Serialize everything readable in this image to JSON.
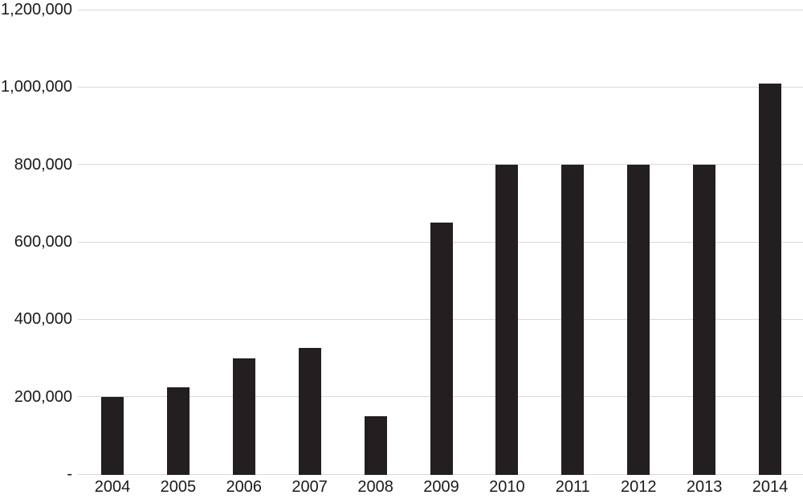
{
  "chart_data": {
    "type": "bar",
    "title": "",
    "xlabel": "",
    "ylabel": "",
    "categories": [
      "2004",
      "2005",
      "2006",
      "2007",
      "2008",
      "2009",
      "2010",
      "2011",
      "2012",
      "2013",
      "2014"
    ],
    "values": [
      200000,
      225000,
      300000,
      325000,
      150000,
      650000,
      800000,
      800000,
      800000,
      800000,
      1010000
    ],
    "ylim": [
      0,
      1200000
    ],
    "y_ticks": [
      {
        "value": 0,
        "label": "-"
      },
      {
        "value": 200000,
        "label": "200,000"
      },
      {
        "value": 400000,
        "label": "400,000"
      },
      {
        "value": 600000,
        "label": "600,000"
      },
      {
        "value": 800000,
        "label": "800,000"
      },
      {
        "value": 1000000,
        "label": "1,000,000"
      },
      {
        "value": 1200000,
        "label": "1,200,000"
      }
    ],
    "grid": "horizontal-only",
    "legend": "none",
    "colors": {
      "bar": "#231f20",
      "gridline": "#d9d9d9",
      "text": "#1a1a1a",
      "background": "#ffffff"
    }
  }
}
